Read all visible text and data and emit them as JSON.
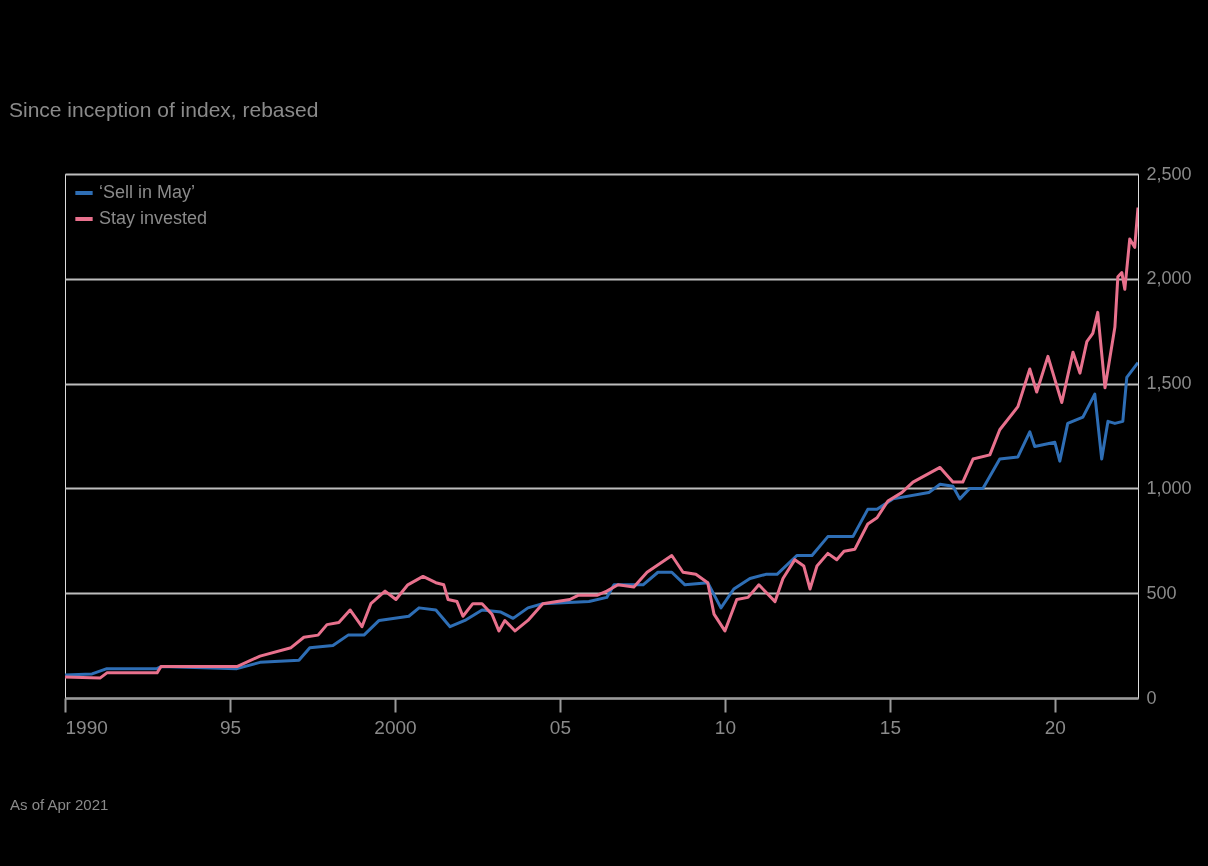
{
  "chart_data": {
    "type": "line",
    "subtitle": "Since inception of index, rebased",
    "annotations": [
      "As of Apr 2021"
    ],
    "xlim": [
      1990,
      2022.52
    ],
    "xticks": [
      {
        "value": 1990,
        "label": "1990"
      },
      {
        "value": 1995,
        "label": "95"
      },
      {
        "value": 2000,
        "label": "2000"
      },
      {
        "value": 2005,
        "label": "05"
      },
      {
        "value": 2010,
        "label": "10"
      },
      {
        "value": 2015,
        "label": "15"
      },
      {
        "value": 2020,
        "label": "20"
      }
    ],
    "ylim": [
      0,
      2500
    ],
    "yticks": [
      0,
      500,
      {
        "value": 1000,
        "label": "1,000"
      },
      {
        "value": 1500,
        "label": "1,500"
      },
      {
        "value": 2000,
        "label": "2,000"
      },
      {
        "value": 2500,
        "label": "2,500"
      }
    ],
    "grid": "y",
    "legend": "top left",
    "line_style": "solid",
    "series": [
      {
        "name": "‘Sell in May’",
        "color": "#2e6eb5",
        "x": [
          1990,
          1990.82,
          1991.27,
          1992.79,
          1992.91,
          1995.21,
          1995.91,
          1997.09,
          1997.42,
          1998.12,
          1998.58,
          1999.06,
          1999.52,
          2000.42,
          2000.73,
          2001.24,
          2001.67,
          2002.12,
          2002.64,
          2003.21,
          2003.58,
          2004.03,
          2004.48,
          2005.88,
          2006.42,
          2006.64,
          2007.52,
          2007.97,
          2008.39,
          2008.79,
          2009.48,
          2009.88,
          2010.27,
          2010.76,
          2011.24,
          2011.58,
          2012.18,
          2012.64,
          2013.12,
          2013.88,
          2014.33,
          2014.61,
          2015.09,
          2016.18,
          2016.52,
          2016.91,
          2017.12,
          2017.42,
          2017.82,
          2018.33,
          2018.88,
          2019.24,
          2019.39,
          2020,
          2020.15,
          2020.39,
          2020.85,
          2021.21,
          2021.42,
          2021.61,
          2021.82,
          2022.06,
          2022.18,
          2022.52
        ],
        "values": [
          110,
          115,
          140,
          140,
          150,
          140,
          170,
          180,
          240,
          250,
          300,
          300,
          370,
          390,
          430,
          420,
          340,
          370,
          420,
          410,
          380,
          430,
          450,
          460,
          480,
          540,
          540,
          600,
          600,
          540,
          550,
          430,
          520,
          570,
          590,
          590,
          680,
          680,
          770,
          770,
          900,
          900,
          950,
          980,
          1020,
          1010,
          950,
          1000,
          1000,
          1140,
          1150,
          1270,
          1200,
          1220,
          1130,
          1310,
          1340,
          1450,
          1140,
          1320,
          1310,
          1320,
          1530,
          1600
        ]
      },
      {
        "name": "Stay invested",
        "color": "#e8718d",
        "x": [
          1990,
          1991.06,
          1991.27,
          1992.79,
          1992.91,
          1995.21,
          1995.91,
          1996.85,
          1997.24,
          1997.67,
          1997.94,
          1998.3,
          1998.64,
          1999,
          1999.27,
          1999.7,
          2000.03,
          2000.39,
          2000.85,
          2001.24,
          2001.48,
          2001.61,
          2001.88,
          2002.06,
          2002.36,
          2002.64,
          2002.94,
          2003.15,
          2003.33,
          2003.64,
          2004.03,
          2004.48,
          2005.3,
          2005.55,
          2006.12,
          2006.42,
          2006.76,
          2007.24,
          2007.64,
          2008.39,
          2008.73,
          2009.12,
          2009.48,
          2009.67,
          2010,
          2010.36,
          2010.7,
          2011.03,
          2011.52,
          2011.76,
          2012.12,
          2012.39,
          2012.58,
          2012.79,
          2013.12,
          2013.39,
          2013.61,
          2013.94,
          2014.33,
          2014.61,
          2014.94,
          2015.36,
          2015.7,
          2016.52,
          2016.91,
          2017.21,
          2017.52,
          2018.03,
          2018.33,
          2018.88,
          2019.24,
          2019.45,
          2019.79,
          2020.21,
          2020.55,
          2020.76,
          2020.97,
          2021.15,
          2021.3,
          2021.52,
          2021.82,
          2021.91,
          2022.03,
          2022.12,
          2022.27,
          2022.42,
          2022.52
        ],
        "values": [
          100,
          95,
          120,
          120,
          150,
          150,
          200,
          240,
          290,
          300,
          350,
          360,
          420,
          340,
          450,
          510,
          470,
          540,
          580,
          550,
          540,
          470,
          460,
          390,
          450,
          450,
          400,
          320,
          370,
          320,
          370,
          450,
          470,
          490,
          490,
          510,
          540,
          530,
          600,
          680,
          600,
          590,
          550,
          400,
          320,
          470,
          480,
          540,
          460,
          570,
          660,
          630,
          520,
          630,
          690,
          660,
          700,
          710,
          830,
          860,
          940,
          980,
          1030,
          1100,
          1030,
          1030,
          1140,
          1160,
          1280,
          1390,
          1570,
          1460,
          1630,
          1410,
          1650,
          1550,
          1700,
          1740,
          1840,
          1480,
          1770,
          2010,
          2030,
          1950,
          2190,
          2150,
          2340
        ]
      }
    ]
  }
}
